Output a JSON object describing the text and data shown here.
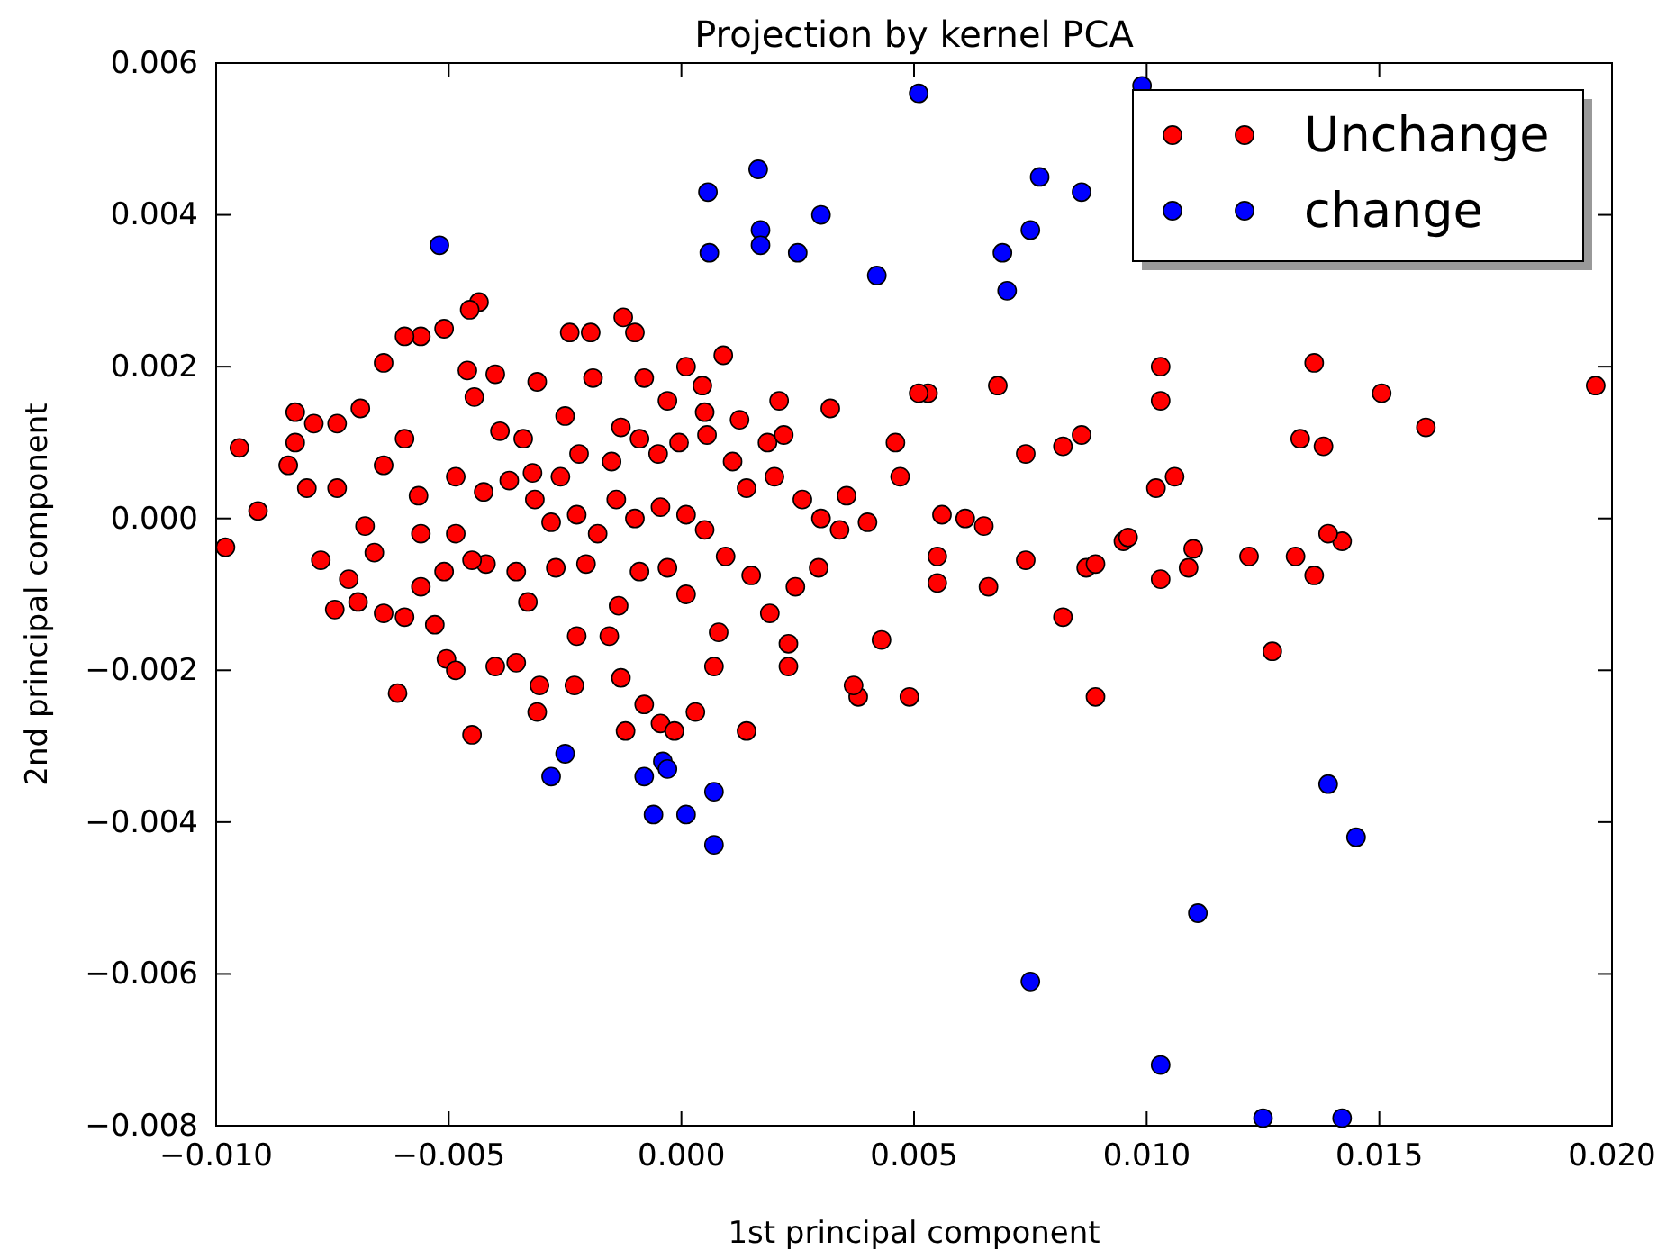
{
  "chart_data": {
    "type": "scatter",
    "title": "Projection by kernel PCA",
    "xlabel": "1st principal component",
    "ylabel": "2nd principal component",
    "xlim": [
      -0.01,
      0.02
    ],
    "ylim": [
      -0.008,
      0.006
    ],
    "xticks": [
      {
        "value": -0.01,
        "label": "−0.010"
      },
      {
        "value": -0.005,
        "label": "−0.005"
      },
      {
        "value": 0,
        "label": "0.000"
      },
      {
        "value": 0.005,
        "label": "0.005"
      },
      {
        "value": 0.01,
        "label": "0.010"
      },
      {
        "value": 0.015,
        "label": "0.015"
      },
      {
        "value": 0.02,
        "label": "0.020"
      }
    ],
    "yticks": [
      {
        "value": -0.008,
        "label": "−0.008"
      },
      {
        "value": -0.006,
        "label": "−0.006"
      },
      {
        "value": -0.004,
        "label": "−0.004"
      },
      {
        "value": -0.002,
        "label": "−0.002"
      },
      {
        "value": 0,
        "label": "0.000"
      },
      {
        "value": 0.002,
        "label": "0.002"
      },
      {
        "value": 0.004,
        "label": "0.004"
      },
      {
        "value": 0.006,
        "label": "0.006"
      }
    ],
    "grid": false,
    "legend": "top right",
    "marker": "circle",
    "series": [
      {
        "name": "Unchange",
        "color": "#ff0000",
        "x": [
          0.01965,
          0.016,
          0.01505,
          0.0142,
          0.0138,
          0.0136,
          0.0133,
          0.0139,
          0.0136,
          0.0132,
          0.0127,
          0.0122,
          0.011,
          0.0109,
          0.0103,
          0.0103,
          0.0106,
          0.0102,
          0.0103,
          0.0095,
          0.0096,
          0.0087,
          0.0089,
          0.0089,
          0.0082,
          0.0086,
          0.0082,
          0.0074,
          0.0074,
          0.0068,
          0.0066,
          0.0065,
          0.0061,
          0.0056,
          0.0053,
          0.0051,
          0.0055,
          0.0055,
          0.0049,
          0.0038,
          0.0037,
          0.0043,
          0.0046,
          0.0047,
          0.0032,
          0.0023,
          0.0023,
          0.0014,
          0.0021,
          0.0009,
          0.0005,
          0.0001,
          -0.0008,
          -0.00125,
          -0.00195,
          -0.0024,
          -0.001,
          -0.00435,
          -0.00455,
          -0.0051,
          -0.0056,
          -0.00595,
          -0.0064,
          -0.0069,
          -0.0074,
          -0.0079,
          -0.0083,
          -0.0083,
          -0.00845,
          -0.00805,
          -0.00775,
          -0.00745,
          -0.00715,
          -0.00695,
          -0.0064,
          -0.0061,
          -0.0053,
          -0.00505,
          -0.0045,
          -0.00485,
          -0.004,
          -0.00355,
          -0.0031,
          -0.00305,
          -0.0023,
          -0.00225,
          -0.00155,
          -0.0013,
          -0.0012,
          -0.0008,
          -0.00045,
          -0.00015,
          0.0003,
          0.0007,
          0.0008,
          0.0001,
          -0.0003,
          -0.0009,
          -0.00135,
          -0.00205,
          -0.0027,
          -0.0033,
          -0.00355,
          -0.0042,
          -0.0045,
          -0.00485,
          -0.0056,
          -0.00565,
          -0.00485,
          -0.00425,
          -0.0037,
          -0.00315,
          -0.0026,
          -0.0022,
          -0.0015,
          -0.0013,
          -0.0009,
          -0.0005,
          -5e-05,
          0.00055,
          0.0011,
          0.0014,
          0.00185,
          0.002,
          0.0026,
          0.003,
          0.00355,
          0.004,
          0.0034,
          0.00295,
          0.00245,
          0.0019,
          0.0015,
          0.00095,
          0.0005,
          0.0001,
          -0.00045,
          -0.001,
          -0.0014,
          -0.0018,
          -0.00225,
          -0.0028,
          -0.0032,
          -0.0034,
          -0.0039,
          -0.00445,
          -0.004,
          -0.0046,
          -0.0031,
          -0.0025,
          -0.0019,
          -0.0003,
          0.00045,
          0.00125,
          0.0022,
          -0.0068,
          -0.0064,
          -0.00595,
          -0.0056,
          -0.0051,
          -0.00595,
          -0.0074,
          -0.0066,
          -0.0098,
          -0.0095,
          -0.0091
        ],
        "values": [
          0.00175,
          0.0012,
          0.00165,
          -0.0003,
          0.00095,
          0.00205,
          0.00105,
          -0.0002,
          -0.00075,
          -0.0005,
          -0.00175,
          -0.0005,
          -0.0004,
          -0.00065,
          0.002,
          0.00155,
          0.00055,
          0.0004,
          -0.0008,
          -0.0003,
          -0.00025,
          -0.00065,
          -0.0006,
          -0.00235,
          -0.0013,
          0.0011,
          0.00095,
          0.00085,
          -0.00055,
          0.00175,
          -0.0009,
          -0.0001,
          0.0,
          5e-05,
          0.00165,
          0.00165,
          -0.0005,
          -0.00085,
          -0.00235,
          -0.00235,
          -0.0022,
          -0.0016,
          0.001,
          0.00055,
          0.00145,
          -0.00165,
          -0.00195,
          -0.0028,
          0.00155,
          0.00215,
          0.0014,
          0.002,
          0.00185,
          0.00265,
          0.00245,
          0.00245,
          0.00245,
          0.00285,
          0.00275,
          0.0025,
          0.0024,
          0.0024,
          0.00205,
          0.00145,
          0.00125,
          0.00125,
          0.0014,
          0.001,
          0.0007,
          0.0004,
          -0.00055,
          -0.0012,
          -0.0008,
          -0.0011,
          -0.00125,
          -0.0023,
          -0.0014,
          -0.00185,
          -0.00285,
          -0.002,
          -0.00195,
          -0.0019,
          -0.00255,
          -0.0022,
          -0.0022,
          -0.00155,
          -0.00155,
          -0.0021,
          -0.0028,
          -0.00245,
          -0.0027,
          -0.0028,
          -0.00255,
          -0.00195,
          -0.0015,
          -0.001,
          -0.00065,
          -0.0007,
          -0.00115,
          -0.0006,
          -0.00065,
          -0.0011,
          -0.0007,
          -0.0006,
          -0.00055,
          -0.0002,
          -0.0002,
          0.0003,
          0.00055,
          0.00035,
          0.0005,
          0.00025,
          0.00055,
          0.00085,
          0.00075,
          0.0012,
          0.00105,
          0.00085,
          0.001,
          0.0011,
          0.00075,
          0.0004,
          0.001,
          0.00055,
          0.00025,
          0.0,
          0.0003,
          -5e-05,
          -0.00015,
          -0.00065,
          -0.0009,
          -0.00125,
          -0.00075,
          -0.0005,
          -0.00015,
          5e-05,
          0.00015,
          0.0,
          0.00025,
          -0.0002,
          5e-05,
          -5e-05,
          0.0006,
          0.00105,
          0.00115,
          0.0016,
          0.0019,
          0.00195,
          0.0018,
          0.00135,
          0.00185,
          0.00155,
          0.00175,
          0.0013,
          0.0011,
          -0.0001,
          0.0007,
          0.00105,
          -0.0009,
          -0.0007,
          -0.0013,
          0.0004,
          -0.00045,
          -0.00038,
          0.00093,
          0.0001
        ]
      },
      {
        "name": "change",
        "color": "#0000ff",
        "x": [
          -0.0052,
          0.00057,
          0.00165,
          0.0006,
          0.0017,
          0.0017,
          0.0025,
          0.003,
          0.0042,
          0.0051,
          0.0099,
          0.0077,
          0.0075,
          0.0086,
          0.0069,
          0.007,
          -0.0025,
          -0.0028,
          -0.0008,
          -0.0004,
          -0.0003,
          -0.0006,
          0.0001,
          0.0007,
          0.0007,
          0.0139,
          0.0145,
          0.0111,
          0.0075,
          0.0103,
          0.0125,
          0.0142
        ],
        "values": [
          0.0036,
          0.0043,
          0.0046,
          0.0035,
          0.0038,
          0.0036,
          0.0035,
          0.004,
          0.0032,
          0.0056,
          0.0057,
          0.0045,
          0.0038,
          0.0043,
          0.0035,
          0.003,
          -0.0031,
          -0.0034,
          -0.0034,
          -0.0032,
          -0.0033,
          -0.0039,
          -0.0039,
          -0.0036,
          -0.0043,
          -0.0035,
          -0.0042,
          -0.0052,
          -0.0061,
          -0.0072,
          -0.0079,
          -0.0079
        ]
      }
    ]
  }
}
